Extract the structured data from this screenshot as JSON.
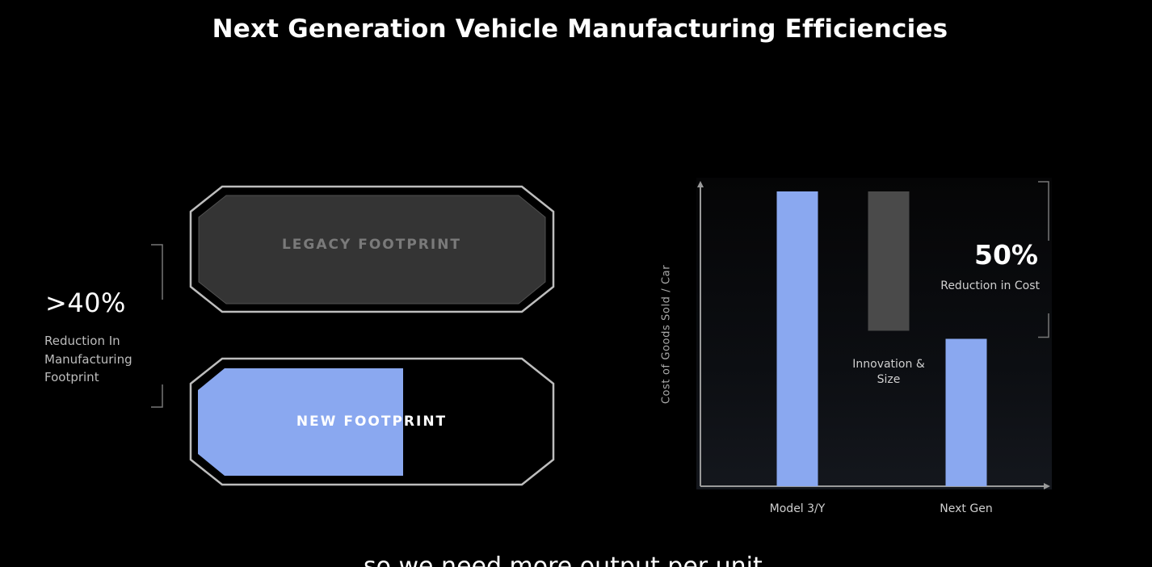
{
  "slide": {
    "title": "Next Generation Vehicle Manufacturing Efficiencies"
  },
  "footprint": {
    "stat_value": ">40%",
    "stat_desc_lines": [
      "Reduction In",
      "Manufacturing",
      "Footprint"
    ],
    "legacy_label": "LEGACY FOOTPRINT",
    "new_label": "NEW FOOTPRINT",
    "colors": {
      "legacy_fill": "#343434",
      "new_fill": "#8aa8f0",
      "outline": "#bdbdbd"
    }
  },
  "chart_data": {
    "type": "bar",
    "ylabel": "Cost of Goods Sold / Car",
    "categories": [
      "Model 3/Y",
      "Innovation & Size",
      "Next Gen"
    ],
    "tick_labels": [
      "Model 3/Y",
      "Next Gen"
    ],
    "series": [
      {
        "values": [
          100,
          null,
          50
        ],
        "color": "#8aa8f0"
      },
      {
        "values": [
          null,
          50,
          null
        ],
        "color": "#4a4a4a",
        "base": 50
      }
    ],
    "ylim": [
      0,
      100
    ],
    "annotations": [
      {
        "text": "Innovation &\nSize"
      },
      {
        "text": "50%",
        "sub": "Reduction in Cost"
      }
    ]
  },
  "chart_text": {
    "innovation_line1": "Innovation &",
    "innovation_line2": "Size",
    "reduction_pct": "50%",
    "reduction_desc": "Reduction in Cost"
  },
  "caption": {
    "text": "so we need more output per unit"
  }
}
